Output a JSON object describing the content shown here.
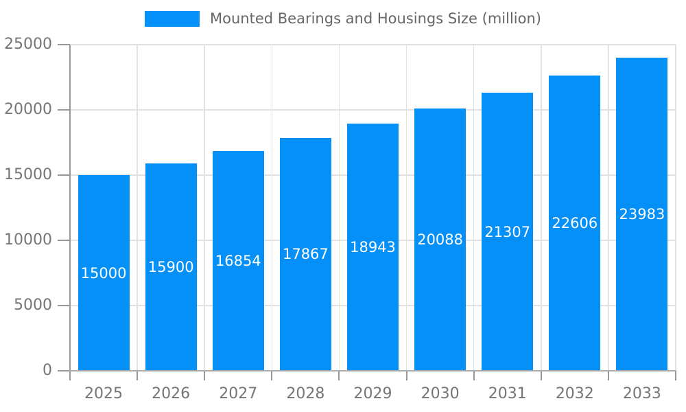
{
  "chart_data": {
    "type": "bar",
    "title": "Mounted Bearings and Housings Size (million)",
    "categories": [
      "2025",
      "2026",
      "2027",
      "2028",
      "2029",
      "2030",
      "2031",
      "2032",
      "2033"
    ],
    "values": [
      15000,
      15900,
      16854,
      17867,
      18943,
      20088,
      21307,
      22606,
      23983
    ],
    "series": [
      {
        "name": "Mounted Bearings and Housings Size (million)",
        "values": [
          15000,
          15900,
          16854,
          17867,
          18943,
          20088,
          21307,
          22606,
          23983
        ]
      }
    ],
    "xlabel": "",
    "ylabel": "",
    "ylim": [
      0,
      25000
    ],
    "y_ticks": [
      0,
      5000,
      10000,
      15000,
      20000,
      25000
    ],
    "grid": true,
    "legend_position": "top-center",
    "show_value_labels": true,
    "value_labels": [
      "15000",
      "15900",
      "16854",
      "17867",
      "18943",
      "20088",
      "21307",
      "22606",
      "23983"
    ],
    "colors": {
      "bar": "#0590f8",
      "value_label": "#ffffff",
      "tick_label": "#757575",
      "legend_label": "#666666",
      "grid": "#e2e2e2",
      "y_axis": "#999999",
      "x_axis": "#aaaaaa"
    }
  }
}
